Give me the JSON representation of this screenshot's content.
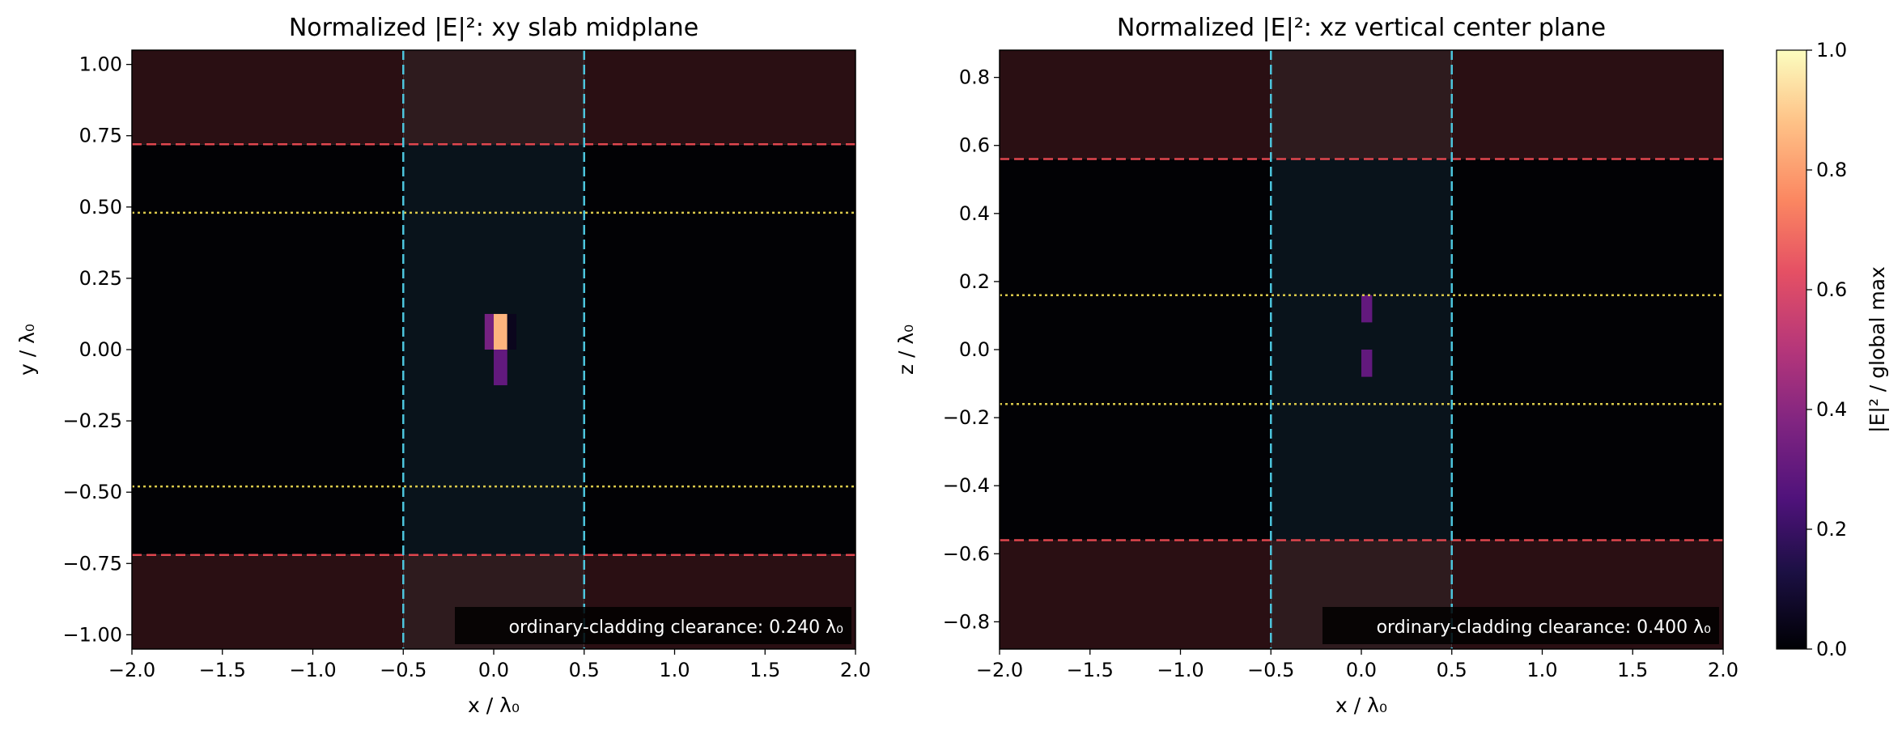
{
  "chart_data": [
    {
      "type": "heatmap",
      "title": "Normalized |E|²: xy slab midplane",
      "xlabel": "x / λ₀",
      "ylabel": "y / λ₀",
      "xlim": [
        -2.0,
        2.0
      ],
      "ylim": [
        -1.05,
        1.05
      ],
      "xticks": [
        -2.0,
        -1.5,
        -1.0,
        -0.5,
        0.0,
        0.5,
        1.0,
        1.5,
        2.0
      ],
      "xtick_labels": [
        "−2.0",
        "−1.5",
        "−1.0",
        "−0.5",
        "0.0",
        "0.5",
        "1.0",
        "1.5",
        "2.0"
      ],
      "yticks": [
        -1.0,
        -0.75,
        -0.5,
        -0.25,
        0.0,
        0.25,
        0.5,
        0.75,
        1.0
      ],
      "ytick_labels": [
        "−1.00",
        "−0.75",
        "−0.50",
        "−0.25",
        "0.00",
        "0.25",
        "0.50",
        "0.75",
        "1.00"
      ],
      "background_regions": [
        {
          "x": [
            -2.0,
            -0.5
          ],
          "y": [
            0.72,
            1.05
          ],
          "color": "#2a0f13"
        },
        {
          "x": [
            0.5,
            2.0
          ],
          "y": [
            0.72,
            1.05
          ],
          "color": "#2a0f13"
        },
        {
          "x": [
            -0.5,
            0.5
          ],
          "y": [
            0.72,
            1.05
          ],
          "color": "#2e1b1e"
        },
        {
          "x": [
            -2.0,
            -0.5
          ],
          "y": [
            -1.05,
            -0.72
          ],
          "color": "#2a0f13"
        },
        {
          "x": [
            0.5,
            2.0
          ],
          "y": [
            -1.05,
            -0.72
          ],
          "color": "#2a0f13"
        },
        {
          "x": [
            -0.5,
            0.5
          ],
          "y": [
            -1.05,
            -0.72
          ],
          "color": "#2e1b1e"
        },
        {
          "x": [
            -2.0,
            2.0
          ],
          "y": [
            -0.72,
            0.72
          ],
          "color": "#020205"
        },
        {
          "x": [
            -0.5,
            0.5
          ],
          "y": [
            -0.72,
            0.72
          ],
          "color": "#09131b"
        }
      ],
      "hot_cells": [
        {
          "x": [
            -0.05,
            0.0
          ],
          "y": [
            0.0,
            0.125
          ],
          "value": 0.35
        },
        {
          "x": [
            0.0,
            0.075
          ],
          "y": [
            0.0,
            0.125
          ],
          "value": 0.85
        },
        {
          "x": [
            0.0,
            0.075
          ],
          "y": [
            -0.125,
            0.0
          ],
          "value": 0.3
        },
        {
          "x": [
            0.075,
            0.125
          ],
          "y": [
            0.0,
            0.125
          ],
          "value": 0.05
        }
      ],
      "hlines": [
        {
          "y": 0.72,
          "style": "dashed",
          "color": "#e0464e"
        },
        {
          "y": -0.72,
          "style": "dashed",
          "color": "#e0464e"
        },
        {
          "y": 0.48,
          "style": "dotted",
          "color": "#d9c84a"
        },
        {
          "y": -0.48,
          "style": "dotted",
          "color": "#d9c84a"
        }
      ],
      "vlines": [
        {
          "x": -0.5,
          "style": "dashed",
          "color": "#4cc4dc"
        },
        {
          "x": 0.5,
          "style": "dashed",
          "color": "#4cc4dc"
        }
      ],
      "annotation": "ordinary-cladding clearance: 0.240 λ₀"
    },
    {
      "type": "heatmap",
      "title": "Normalized |E|²: xz vertical center plane",
      "xlabel": "x / λ₀",
      "ylabel": "z / λ₀",
      "xlim": [
        -2.0,
        2.0
      ],
      "ylim": [
        -0.88,
        0.88
      ],
      "xticks": [
        -2.0,
        -1.5,
        -1.0,
        -0.5,
        0.0,
        0.5,
        1.0,
        1.5,
        2.0
      ],
      "xtick_labels": [
        "−2.0",
        "−1.5",
        "−1.0",
        "−0.5",
        "0.0",
        "0.5",
        "1.0",
        "1.5",
        "2.0"
      ],
      "yticks": [
        -0.8,
        -0.6,
        -0.4,
        -0.2,
        0.0,
        0.2,
        0.4,
        0.6,
        0.8
      ],
      "ytick_labels": [
        "−0.8",
        "−0.6",
        "−0.4",
        "−0.2",
        "0.0",
        "0.2",
        "0.4",
        "0.6",
        "0.8"
      ],
      "background_regions": [
        {
          "x": [
            -2.0,
            -0.5
          ],
          "y": [
            0.56,
            0.88
          ],
          "color": "#2a0f13"
        },
        {
          "x": [
            0.5,
            2.0
          ],
          "y": [
            0.56,
            0.88
          ],
          "color": "#2a0f13"
        },
        {
          "x": [
            -0.5,
            0.5
          ],
          "y": [
            0.56,
            0.88
          ],
          "color": "#2e1b1e"
        },
        {
          "x": [
            -2.0,
            -0.5
          ],
          "y": [
            -0.88,
            -0.56
          ],
          "color": "#2a0f13"
        },
        {
          "x": [
            0.5,
            2.0
          ],
          "y": [
            -0.88,
            -0.56
          ],
          "color": "#2a0f13"
        },
        {
          "x": [
            -0.5,
            0.5
          ],
          "y": [
            -0.88,
            -0.56
          ],
          "color": "#2e1b1e"
        },
        {
          "x": [
            -2.0,
            2.0
          ],
          "y": [
            -0.56,
            0.56
          ],
          "color": "#020205"
        },
        {
          "x": [
            -0.5,
            0.5
          ],
          "y": [
            -0.56,
            0.56
          ],
          "color": "#09131b"
        }
      ],
      "hot_cells": [
        {
          "x": [
            0.0,
            0.06
          ],
          "y": [
            0.08,
            0.16
          ],
          "value": 0.3
        },
        {
          "x": [
            0.0,
            0.06
          ],
          "y": [
            -0.08,
            0.0
          ],
          "value": 0.3
        }
      ],
      "hlines": [
        {
          "y": 0.56,
          "style": "dashed",
          "color": "#e0464e"
        },
        {
          "y": -0.56,
          "style": "dashed",
          "color": "#e0464e"
        },
        {
          "y": 0.16,
          "style": "dotted",
          "color": "#d9c84a"
        },
        {
          "y": -0.16,
          "style": "dotted",
          "color": "#d9c84a"
        }
      ],
      "vlines": [
        {
          "x": -0.5,
          "style": "dashed",
          "color": "#4cc4dc"
        },
        {
          "x": 0.5,
          "style": "dashed",
          "color": "#4cc4dc"
        }
      ],
      "annotation": "ordinary-cladding clearance: 0.400 λ₀"
    }
  ],
  "colorbar": {
    "label": "|E|² / global max",
    "colormap": "magma",
    "range": [
      0.0,
      1.0
    ],
    "ticks": [
      0.0,
      0.2,
      0.4,
      0.6,
      0.8,
      1.0
    ],
    "tick_labels": [
      "0.0",
      "0.2",
      "0.4",
      "0.6",
      "0.8",
      "1.0"
    ]
  }
}
